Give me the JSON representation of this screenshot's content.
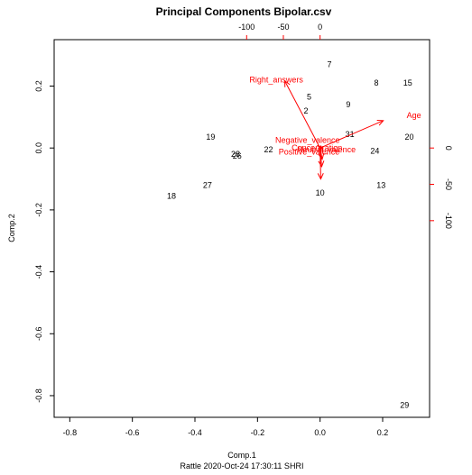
{
  "chart_data": {
    "type": "scatter",
    "title": "Principal Components Bipolar.csv",
    "xlabel": "Comp.1",
    "ylabel": "Comp.2",
    "caption": "Rattle 2020-Oct-24 17:30:11 SHRI",
    "xlim": [
      -0.85,
      0.35
    ],
    "ylim": [
      -0.87,
      0.35
    ],
    "x_ticks": [
      -0.8,
      -0.6,
      -0.4,
      -0.2,
      0.0,
      0.2
    ],
    "x_tick_labels": [
      "-0.8",
      "-0.6",
      "-0.4",
      "-0.2",
      "0.0",
      "0.2"
    ],
    "y_ticks": [
      0.2,
      0.0,
      -0.2,
      -0.4,
      -0.6,
      -0.8
    ],
    "y_tick_labels": [
      "0.2",
      "0.0",
      "-0.2",
      "-0.4",
      "-0.6",
      "-0.8"
    ],
    "top_ticks": [
      -100,
      -50,
      0
    ],
    "top_tick_labels": [
      "-100",
      "-50",
      "0"
    ],
    "right_ticks": [
      0,
      -50,
      -100
    ],
    "right_tick_labels": [
      "0",
      "-50",
      "-100"
    ],
    "loading_scale": 426,
    "points": [
      {
        "label": "7",
        "x": 0.03,
        "y": 0.27
      },
      {
        "label": "8",
        "x": 0.18,
        "y": 0.21
      },
      {
        "label": "15",
        "x": 0.28,
        "y": 0.21
      },
      {
        "label": "5",
        "x": -0.035,
        "y": 0.165
      },
      {
        "label": "9",
        "x": 0.09,
        "y": 0.14
      },
      {
        "label": "2",
        "x": -0.045,
        "y": 0.12
      },
      {
        "label": "31",
        "x": 0.095,
        "y": 0.045
      },
      {
        "label": "20",
        "x": 0.285,
        "y": 0.035
      },
      {
        "label": "19",
        "x": -0.35,
        "y": 0.035
      },
      {
        "label": "22",
        "x": -0.165,
        "y": -0.005
      },
      {
        "label": "24",
        "x": 0.175,
        "y": -0.01
      },
      {
        "label": "26",
        "x": -0.265,
        "y": -0.025
      },
      {
        "label": "28",
        "x": -0.27,
        "y": -0.02
      },
      {
        "label": "27",
        "x": -0.36,
        "y": -0.12
      },
      {
        "label": "13",
        "x": 0.195,
        "y": -0.12
      },
      {
        "label": "10",
        "x": 0.0,
        "y": -0.145
      },
      {
        "label": "18",
        "x": -0.475,
        "y": -0.155
      },
      {
        "label": "29",
        "x": 0.27,
        "y": -0.83
      }
    ],
    "variables": [
      {
        "name": "Right_answers",
        "x": -0.0265,
        "y": 0.0509
      },
      {
        "name": "Age",
        "x": 0.0474,
        "y": 0.0208
      },
      {
        "name": "Negative_valence",
        "x": 0.002,
        "y": 0.0
      },
      {
        "name": "Positive_valence",
        "x": 0.0005,
        "y": -0.0235
      },
      {
        "name": "Concentration",
        "x": 0.0012,
        "y": -0.0141
      },
      {
        "name": "Neutral_valence",
        "x": 0.0016,
        "y": -0.0085
      }
    ],
    "variable_labels": [
      {
        "name": "Right_answers",
        "x": -0.14,
        "y": 0.22
      },
      {
        "name": "Age",
        "x": 0.3,
        "y": 0.105
      },
      {
        "name": "Negative_valence",
        "x": -0.04,
        "y": 0.025
      },
      {
        "name": "Concentration",
        "x": -0.01,
        "y": 0.0
      },
      {
        "name": "Neutral_valence",
        "x": 0.02,
        "y": -0.005
      },
      {
        "name": "Positive_valence",
        "x": -0.035,
        "y": -0.012
      }
    ],
    "colors": {
      "points": "#000000",
      "variables": "#ff0000",
      "axes": "#000000"
    }
  }
}
